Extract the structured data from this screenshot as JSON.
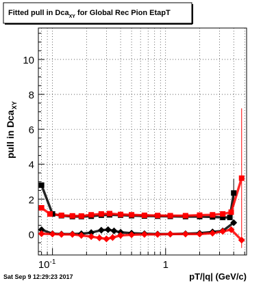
{
  "title": "Fitted pull in Dca",
  "title_sub": "XY",
  "title_tail": " for Global Rec Pion EtapT",
  "ylabel": "pull in Dca",
  "ylabel_sub": "XY",
  "xlabel": "pT/|q| (GeV/c)",
  "timestamp": "Sat Sep  9 12:29:23 2017",
  "colors": {
    "series_black": "#000000",
    "series_red": "#ff0000",
    "grid": "#000000"
  },
  "chart_data": {
    "type": "scatter",
    "title": "Fitted pull in Dca_XY for Global Rec Pion EtapT",
    "xlabel": "pT/|q| (GeV/c)",
    "ylabel": "pull in Dca_XY",
    "xscale": "log",
    "xlim": [
      0.075,
      5.2
    ],
    "ylim": [
      -1.2,
      11.8
    ],
    "grid": true,
    "x_ticks": [
      0.1,
      1
    ],
    "x_tick_labels": [
      "10^-1",
      "1"
    ],
    "y_ticks": [
      0,
      2,
      4,
      6,
      8,
      10
    ],
    "y_tick_labels": [
      "0",
      "2",
      "4",
      "6",
      "8",
      "10"
    ],
    "series": [
      {
        "color": "#000000",
        "marker": "square",
        "points": [
          [
            0.08,
            2.8
          ],
          [
            0.1,
            1.15
          ],
          [
            0.12,
            1.05
          ],
          [
            0.15,
            1.0
          ],
          [
            0.18,
            1.0
          ],
          [
            0.22,
            1.02
          ],
          [
            0.27,
            1.08
          ],
          [
            0.32,
            1.1
          ],
          [
            0.4,
            1.08
          ],
          [
            0.5,
            1.05
          ],
          [
            0.65,
            1.03
          ],
          [
            0.85,
            1.02
          ],
          [
            1.1,
            1.01
          ],
          [
            1.5,
            1.0
          ],
          [
            2.0,
            1.0
          ],
          [
            2.6,
            0.98
          ],
          [
            3.2,
            0.95
          ],
          [
            3.7,
            0.95
          ],
          [
            4.0,
            2.35
          ]
        ],
        "yerr": [
          [
            0.08,
            0.15
          ],
          [
            4.0,
            0.8
          ]
        ]
      },
      {
        "color": "#000000",
        "marker": "diamond",
        "points": [
          [
            0.08,
            0.25
          ],
          [
            0.1,
            0.02
          ],
          [
            0.12,
            0.0
          ],
          [
            0.15,
            0.0
          ],
          [
            0.18,
            0.02
          ],
          [
            0.22,
            0.08
          ],
          [
            0.27,
            0.22
          ],
          [
            0.31,
            0.25
          ],
          [
            0.35,
            0.18
          ],
          [
            0.4,
            0.1
          ],
          [
            0.5,
            0.05
          ],
          [
            0.65,
            0.02
          ],
          [
            0.85,
            0.0
          ],
          [
            1.1,
            0.0
          ],
          [
            1.5,
            0.02
          ],
          [
            2.0,
            0.05
          ],
          [
            2.6,
            0.12
          ],
          [
            3.2,
            0.18
          ],
          [
            4.0,
            0.65
          ]
        ]
      },
      {
        "color": "#ff0000",
        "marker": "square",
        "points": [
          [
            0.08,
            1.5
          ],
          [
            0.095,
            1.15
          ],
          [
            0.12,
            1.07
          ],
          [
            0.15,
            1.04
          ],
          [
            0.18,
            1.03
          ],
          [
            0.22,
            1.1
          ],
          [
            0.27,
            1.15
          ],
          [
            0.32,
            1.17
          ],
          [
            0.4,
            1.12
          ],
          [
            0.5,
            1.1
          ],
          [
            0.65,
            1.07
          ],
          [
            0.85,
            1.06
          ],
          [
            1.1,
            1.05
          ],
          [
            1.5,
            1.05
          ],
          [
            2.0,
            1.08
          ],
          [
            2.6,
            1.1
          ],
          [
            3.2,
            1.15
          ],
          [
            3.8,
            1.25
          ],
          [
            4.7,
            3.2
          ]
        ],
        "yerr": [
          [
            4.7,
            4.0
          ]
        ]
      },
      {
        "color": "#ff0000",
        "marker": "diamond",
        "points": [
          [
            0.08,
            0.02
          ],
          [
            0.1,
            0.0
          ],
          [
            0.12,
            -0.02
          ],
          [
            0.15,
            -0.02
          ],
          [
            0.18,
            -0.08
          ],
          [
            0.22,
            -0.15
          ],
          [
            0.26,
            -0.22
          ],
          [
            0.3,
            -0.28
          ],
          [
            0.34,
            -0.2
          ],
          [
            0.4,
            -0.08
          ],
          [
            0.5,
            -0.04
          ],
          [
            0.65,
            -0.02
          ],
          [
            0.85,
            -0.02
          ],
          [
            1.1,
            0.0
          ],
          [
            1.5,
            0.0
          ],
          [
            2.0,
            0.0
          ],
          [
            2.6,
            0.05
          ],
          [
            3.2,
            0.15
          ],
          [
            3.8,
            0.25
          ],
          [
            4.7,
            -0.35
          ]
        ]
      }
    ]
  }
}
